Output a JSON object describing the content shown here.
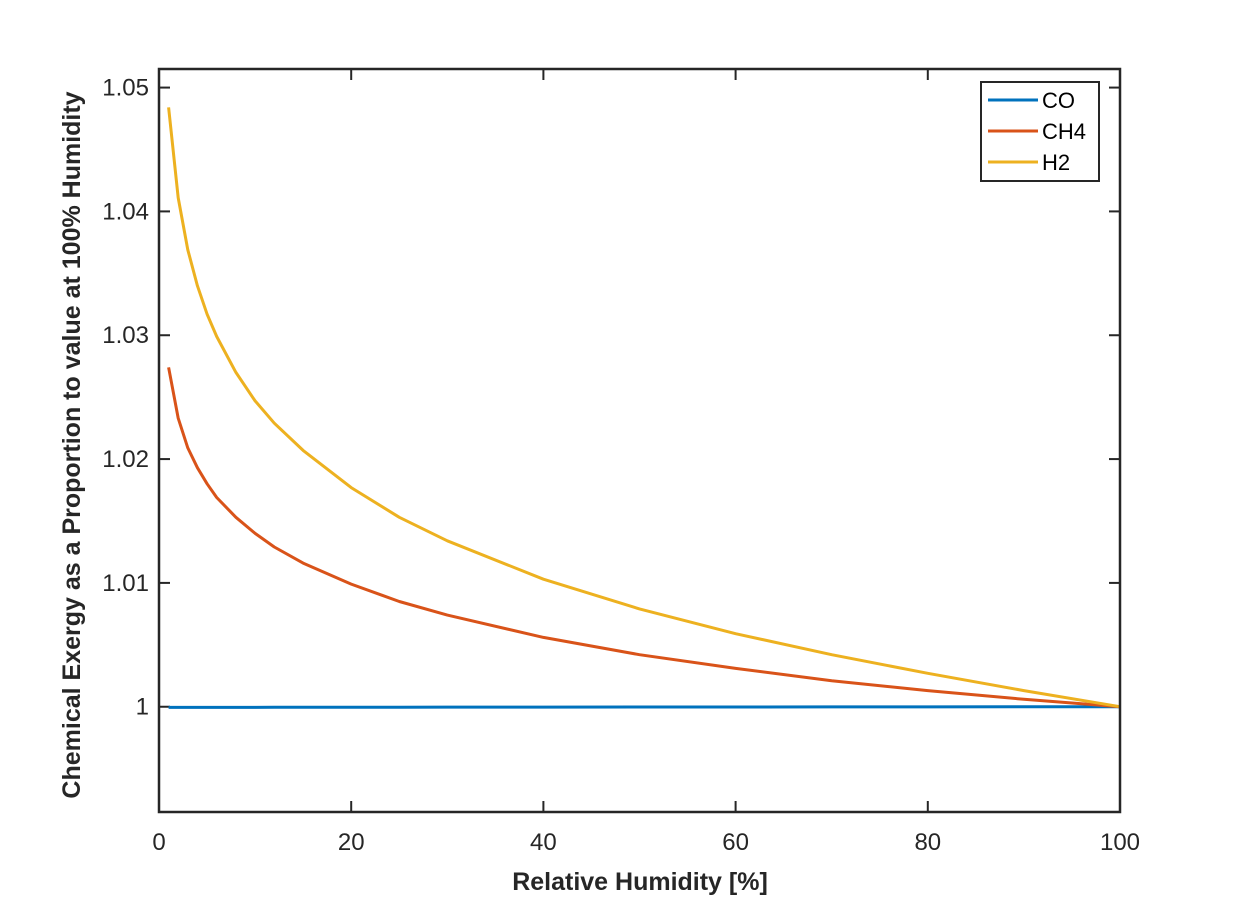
{
  "chart_data": {
    "type": "line",
    "title": "",
    "xlabel": "Relative Humidity [%]",
    "ylabel": "Chemical Exergy as a Proportion to value at 100% Humidity",
    "xlim": [
      0,
      100
    ],
    "ylim": [
      0.9915,
      1.0515
    ],
    "xticks": [
      0,
      20,
      40,
      60,
      80,
      100
    ],
    "xtick_labels": [
      "0",
      "20",
      "40",
      "60",
      "80",
      "100"
    ],
    "yticks": [
      1,
      1.01,
      1.02,
      1.03,
      1.04,
      1.05
    ],
    "ytick_labels": [
      "1",
      "1.01",
      "1.02",
      "1.03",
      "1.04",
      "1.05"
    ],
    "grid": false,
    "legend_position": "top-right",
    "x": [
      1,
      2,
      3,
      4,
      5,
      6,
      8,
      10,
      12,
      15,
      20,
      25,
      30,
      40,
      50,
      60,
      70,
      80,
      90,
      100
    ],
    "series": [
      {
        "name": "CO",
        "color": "#0072BD",
        "values": [
          0.99995,
          0.99995,
          0.99995,
          0.99995,
          0.99995,
          0.99995,
          0.99995,
          0.99995,
          0.99996,
          0.99996,
          0.99996,
          0.99996,
          0.99997,
          0.99997,
          0.99998,
          0.99998,
          0.99999,
          0.99999,
          1.0,
          1.0
        ]
      },
      {
        "name": "CH4",
        "color": "#D95319",
        "values": [
          1.0274,
          1.0233,
          1.0209,
          1.0193,
          1.018,
          1.0169,
          1.0153,
          1.014,
          1.0129,
          1.0116,
          1.0099,
          1.0085,
          1.0074,
          1.0056,
          1.0042,
          1.0031,
          1.0021,
          1.0013,
          1.0006,
          1.0
        ]
      },
      {
        "name": "H2",
        "color": "#EDB120",
        "values": [
          1.0484,
          1.0411,
          1.0369,
          1.034,
          1.0317,
          1.0299,
          1.027,
          1.0247,
          1.0229,
          1.0207,
          1.0177,
          1.0153,
          1.0134,
          1.0103,
          1.0079,
          1.0059,
          1.0042,
          1.0027,
          1.0013,
          1.0
        ]
      }
    ]
  }
}
